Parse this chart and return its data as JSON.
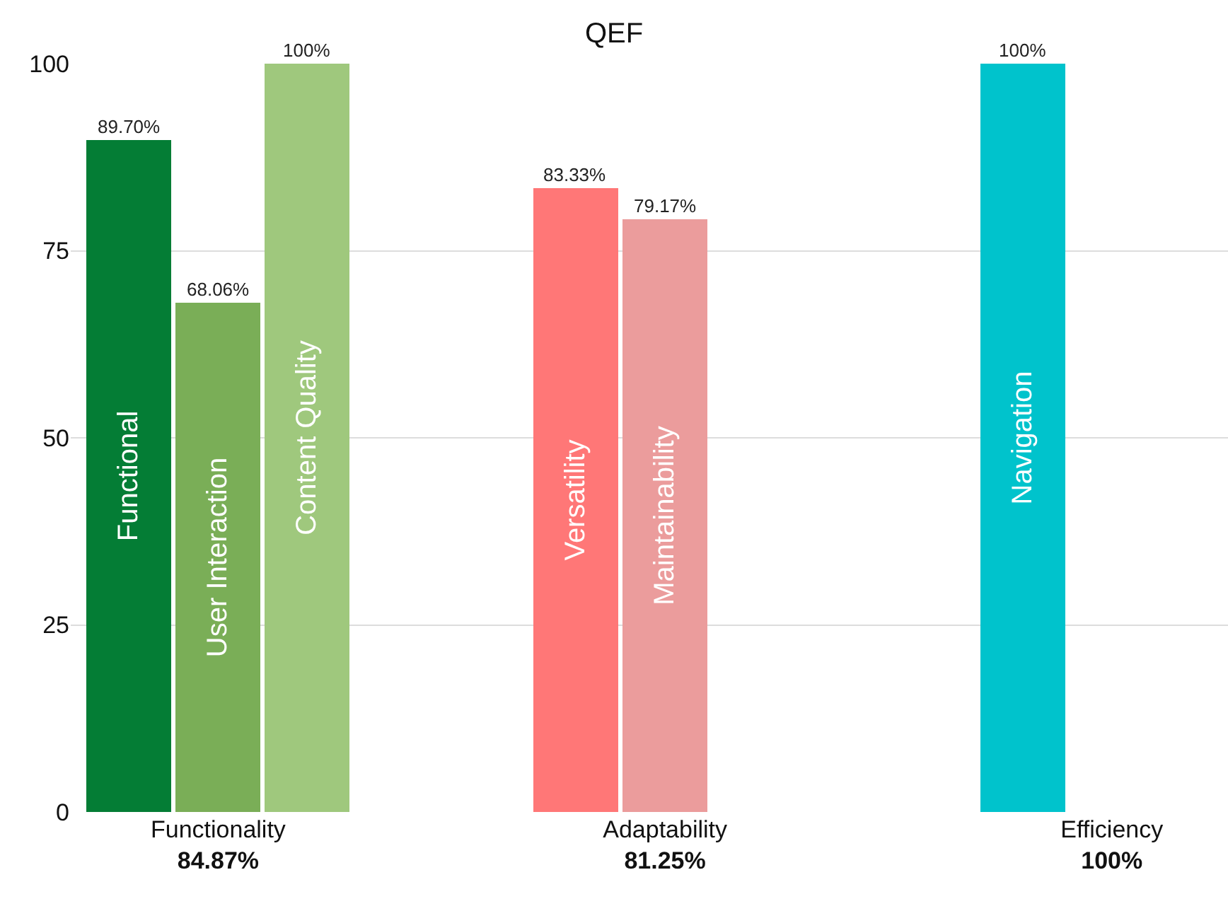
{
  "chart_data": {
    "type": "bar",
    "title": "QEF",
    "categories": [
      "Functionality\n84.87%",
      "Adaptability\n81.25%",
      "Efficiency\n100%"
    ],
    "series": [
      {
        "name": "Functional",
        "color": "#047d35",
        "values": [
          89.7,
          null,
          null
        ],
        "value_labels": [
          "89.70%",
          null,
          null
        ]
      },
      {
        "name": "User Interaction",
        "color": "#7aae57",
        "values": [
          68.06,
          null,
          null
        ],
        "value_labels": [
          "68.06%",
          null,
          null
        ]
      },
      {
        "name": "Content Quality",
        "color": "#9fc87d",
        "values": [
          100,
          null,
          null
        ],
        "value_labels": [
          "100%",
          null,
          null
        ]
      },
      {
        "name": "Versatility",
        "color": "#ff7777",
        "values": [
          null,
          83.33,
          null
        ],
        "value_labels": [
          null,
          "83.33%",
          null
        ]
      },
      {
        "name": "Maintainability",
        "color": "#eb9c9c",
        "values": [
          null,
          79.17,
          null
        ],
        "value_labels": [
          null,
          "79.17%",
          null
        ]
      },
      {
        "name": "Navigation",
        "color": "#00c3cc",
        "values": [
          null,
          null,
          100
        ],
        "value_labels": [
          null,
          null,
          "100%"
        ]
      }
    ],
    "ylim": [
      0,
      100
    ],
    "yticks": [
      0,
      25,
      50,
      75,
      100
    ],
    "grid": "y",
    "legend": false
  }
}
